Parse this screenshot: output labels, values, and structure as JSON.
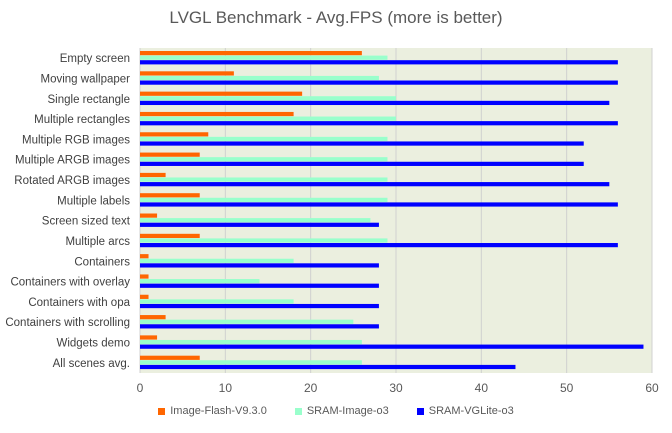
{
  "chart_data": {
    "type": "bar",
    "orientation": "horizontal",
    "title": "LVGL Benchmark - Avg.FPS (more is better)",
    "categories": [
      "Empty screen",
      "Moving wallpaper",
      "Single rectangle",
      "Multiple rectangles",
      "Multiple RGB images",
      "Multiple ARGB images",
      "Rotated ARGB images",
      "Multiple labels",
      "Screen sized text",
      "Multiple arcs",
      "Containers",
      "Containers with overlay",
      "Containers with opa",
      "Containers with scrolling",
      "Widgets demo",
      "All scenes avg."
    ],
    "series": [
      {
        "name": "Image-Flash-V9.3.0",
        "color": "#ff6600",
        "values": [
          26,
          11,
          19,
          18,
          8,
          7,
          3,
          7,
          2,
          7,
          1,
          1,
          1,
          3,
          2,
          7
        ]
      },
      {
        "name": "SRAM-Image-o3",
        "color": "#99ffcc",
        "values": [
          29,
          28,
          30,
          30,
          29,
          29,
          29,
          29,
          27,
          29,
          18,
          14,
          18,
          25,
          26,
          26
        ]
      },
      {
        "name": "SRAM-VGLite-o3",
        "color": "#0000ff",
        "values": [
          56,
          56,
          55,
          56,
          52,
          52,
          55,
          56,
          28,
          56,
          28,
          28,
          28,
          28,
          59,
          44
        ]
      }
    ],
    "xlim": [
      0,
      60
    ],
    "xticks": [
      0,
      10,
      20,
      30,
      40,
      50,
      60
    ],
    "grid": true,
    "legend": "bottom",
    "plot_background": "#ebefdf"
  }
}
